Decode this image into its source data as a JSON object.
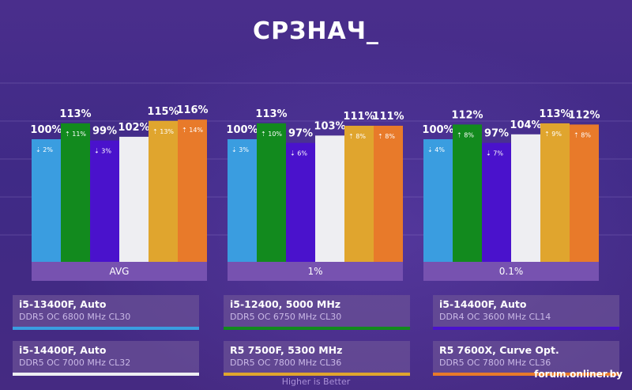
{
  "title": "СРЗНАЧ_",
  "footer": "Higher is Better",
  "watermark": "forum.onliner.by",
  "chart_data": {
    "type": "bar",
    "ylabel": "",
    "ylim": [
      0,
      116
    ],
    "categories": [
      "AVG",
      "1%",
      "0.1%"
    ],
    "series": [
      {
        "name": "i5-13400F, Auto",
        "sub": "DDR5 OC 6800 MHz CL30",
        "color": "#3a9de0",
        "values": [
          100,
          100,
          100
        ],
        "deltas": [
          "2%",
          "3%",
          "4%"
        ],
        "dirs": [
          "down",
          "down",
          "down"
        ]
      },
      {
        "name": "i5-12400, 5000 MHz",
        "sub": "DDR5 OC 6750 MHz CL30",
        "color": "#128a1e",
        "values": [
          113,
          113,
          112
        ],
        "deltas": [
          "11%",
          "10%",
          "8%"
        ],
        "dirs": [
          "up",
          "up",
          "up"
        ]
      },
      {
        "name": "i5-14400F, Auto",
        "sub": "DDR4 OC 3600 MHz CL14",
        "color": "#4a12cc",
        "values": [
          99,
          97,
          97
        ],
        "deltas": [
          "3%",
          "6%",
          "7%"
        ],
        "dirs": [
          "down",
          "down",
          "down"
        ]
      },
      {
        "name": "i5-14400F, Auto",
        "sub": "DDR5 OC 7000 MHz CL32",
        "color": "#eeeef2",
        "values": [
          102,
          103,
          104
        ],
        "deltas": [
          "",
          "",
          ""
        ],
        "dirs": [
          "",
          "",
          ""
        ]
      },
      {
        "name": "R5 7500F, 5300 MHz",
        "sub": "DDR5 OC 7800 MHz CL36",
        "color": "#e0a52e",
        "values": [
          115,
          111,
          113
        ],
        "deltas": [
          "13%",
          "8%",
          "9%"
        ],
        "dirs": [
          "up",
          "up",
          "up"
        ]
      },
      {
        "name": "R5 7600X, Curve Opt.",
        "sub": "DDR5 OC 7800 MHz CL36",
        "color": "#e87a2a",
        "values": [
          116,
          111,
          112
        ],
        "deltas": [
          "14%",
          "8%",
          "8%"
        ],
        "dirs": [
          "up",
          "up",
          "up"
        ]
      }
    ],
    "value_labels": [
      [
        "100%",
        "100%",
        "100%"
      ],
      [
        "113%",
        "113%",
        "112%"
      ],
      [
        "99%",
        "97%",
        "97%"
      ],
      [
        "102%",
        "103%",
        "104%"
      ],
      [
        "115%",
        "111%",
        "113%"
      ],
      [
        "116%",
        "111%",
        "112%"
      ]
    ]
  }
}
